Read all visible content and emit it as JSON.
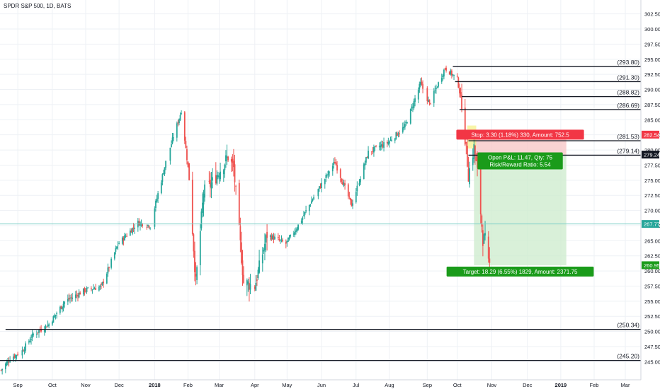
{
  "chart_data": {
    "type": "candlestick",
    "title": "SPDR S&P 500, 1D, BATS",
    "xlabel": "",
    "ylabel": "",
    "ylim": [
      242.0,
      304.8
    ],
    "colors": {
      "up": "#26a69a",
      "down": "#ef5350",
      "grid": "#eef1f5",
      "level_line": "#131722",
      "stop_zone": "#f7c8c8",
      "target_zone": "#cfeccf",
      "current_line": "#7fcfc8",
      "current_badge": "#26a69a",
      "stop_badge": "#f23645",
      "target_badge": "#1a9b1a",
      "entry_badge": "#131722"
    },
    "y_ticks": [
      "302.50",
      "300.00",
      "297.50",
      "295.00",
      "292.50",
      "290.00",
      "287.50",
      "285.00",
      "282.50",
      "280.00",
      "277.50",
      "275.00",
      "272.50",
      "270.00",
      "267.50",
      "265.00",
      "262.50",
      "260.00",
      "257.50",
      "255.00",
      "252.50",
      "250.00",
      "247.50",
      "245.00"
    ],
    "x_ticks": [
      {
        "label": "Sep",
        "date": "2017-09-01"
      },
      {
        "label": "Oct",
        "date": "2017-10-02"
      },
      {
        "label": "Nov",
        "date": "2017-11-01"
      },
      {
        "label": "Dec",
        "date": "2017-12-01"
      },
      {
        "label": "2018",
        "date": "2018-01-02"
      },
      {
        "label": "Feb",
        "date": "2018-02-01"
      },
      {
        "label": "Mar",
        "date": "2018-03-01"
      },
      {
        "label": "Apr",
        "date": "2018-04-02"
      },
      {
        "label": "May",
        "date": "2018-05-01"
      },
      {
        "label": "Jun",
        "date": "2018-06-01"
      },
      {
        "label": "Jul",
        "date": "2018-07-02"
      },
      {
        "label": "Aug",
        "date": "2018-08-01"
      },
      {
        "label": "Sep",
        "date": "2018-09-04"
      },
      {
        "label": "Oct",
        "date": "2018-10-01"
      },
      {
        "label": "Nov",
        "date": "2018-11-01"
      },
      {
        "label": "Dec",
        "date": "2018-12-03"
      },
      {
        "label": "2019",
        "date": "2019-01-02"
      },
      {
        "label": "Feb",
        "date": "2019-02-01"
      },
      {
        "label": "Mar",
        "date": "2019-03-01"
      }
    ],
    "x_range": [
      "2017-08-16",
      "2019-03-15"
    ],
    "path_points": [
      [
        "2017-08-17",
        243.6
      ],
      [
        "2017-08-25",
        245.5
      ],
      [
        "2017-09-05",
        246.8
      ],
      [
        "2017-09-15",
        249.5
      ],
      [
        "2017-09-29",
        251.2
      ],
      [
        "2017-10-13",
        254.9
      ],
      [
        "2017-10-31",
        256.8
      ],
      [
        "2017-11-15",
        257.4
      ],
      [
        "2017-11-30",
        264.4
      ],
      [
        "2017-12-18",
        268.0
      ],
      [
        "2017-12-29",
        267.5
      ],
      [
        "2018-01-12",
        278.0
      ],
      [
        "2018-01-26",
        286.5
      ],
      [
        "2018-02-02",
        275.5
      ],
      [
        "2018-02-08",
        258.0
      ],
      [
        "2018-02-15",
        273.0
      ],
      [
        "2018-02-23",
        274.7
      ],
      [
        "2018-03-09",
        278.9
      ],
      [
        "2018-03-14",
        277.0
      ],
      [
        "2018-03-23",
        258.1
      ],
      [
        "2018-04-02",
        257.5
      ],
      [
        "2018-04-13",
        266.0
      ],
      [
        "2018-04-30",
        264.5
      ],
      [
        "2018-05-09",
        266.9
      ],
      [
        "2018-05-25",
        272.2
      ],
      [
        "2018-06-13",
        278.0
      ],
      [
        "2018-06-28",
        270.9
      ],
      [
        "2018-07-13",
        279.6
      ],
      [
        "2018-07-31",
        281.3
      ],
      [
        "2018-08-15",
        283.9
      ],
      [
        "2018-08-29",
        291.0
      ],
      [
        "2018-09-06",
        287.6
      ],
      [
        "2018-09-20",
        293.6
      ],
      [
        "2018-10-01",
        291.7
      ],
      [
        "2018-10-05",
        287.8
      ],
      [
        "2018-10-10",
        278.0
      ],
      [
        "2018-10-11",
        275.9
      ],
      [
        "2018-10-16",
        280.4
      ],
      [
        "2018-10-19",
        276.3
      ],
      [
        "2018-10-24",
        265.3
      ],
      [
        "2018-10-26",
        265.1
      ],
      [
        "2018-10-29",
        261.0
      ],
      [
        "2018-10-30",
        260.95
      ]
    ],
    "horizontal_levels": [
      {
        "label": "(293.80)",
        "value": 293.8,
        "start": "2018-09-27"
      },
      {
        "label": "(291.30)",
        "value": 291.3,
        "start": "2018-09-29"
      },
      {
        "label": "(288.82)",
        "value": 288.82,
        "start": "2018-10-05"
      },
      {
        "label": "(286.69)",
        "value": 286.69,
        "start": "2018-10-03"
      },
      {
        "label": "(281.53)",
        "value": 281.53,
        "start": "2018-10-11"
      },
      {
        "label": "(279.14)",
        "value": 279.14,
        "start": "2018-10-11"
      },
      {
        "label": "(250.34)",
        "value": 250.34,
        "start": "2017-08-21"
      },
      {
        "label": "(245.20)",
        "value": 245.2,
        "start": "2017-08-16"
      }
    ],
    "position": {
      "entry": 279.24,
      "stop": 282.54,
      "target": 260.95,
      "start": "2018-10-16",
      "end": "2019-01-07",
      "stop_label": "Stop: 3.30 (1.18%) 330, Amount: 752.5",
      "open_label": "Open P&L: 11.47, Qty: 75",
      "rr_label": "Risk/Reward Ratio: 5.54",
      "target_label": "Target: 18.29 (6.55%) 1829, Amount: 2371.75"
    },
    "price_badges": [
      {
        "value": 282.54,
        "text": "282.54",
        "color": "#f23645"
      },
      {
        "value": 279.24,
        "text": "279.24",
        "color": "#131722"
      },
      {
        "value": 267.77,
        "text": "267.77",
        "color": "#26a69a"
      },
      {
        "value": 260.95,
        "text": "260.95",
        "color": "#1a9b1a"
      }
    ],
    "current_price": 267.77
  }
}
